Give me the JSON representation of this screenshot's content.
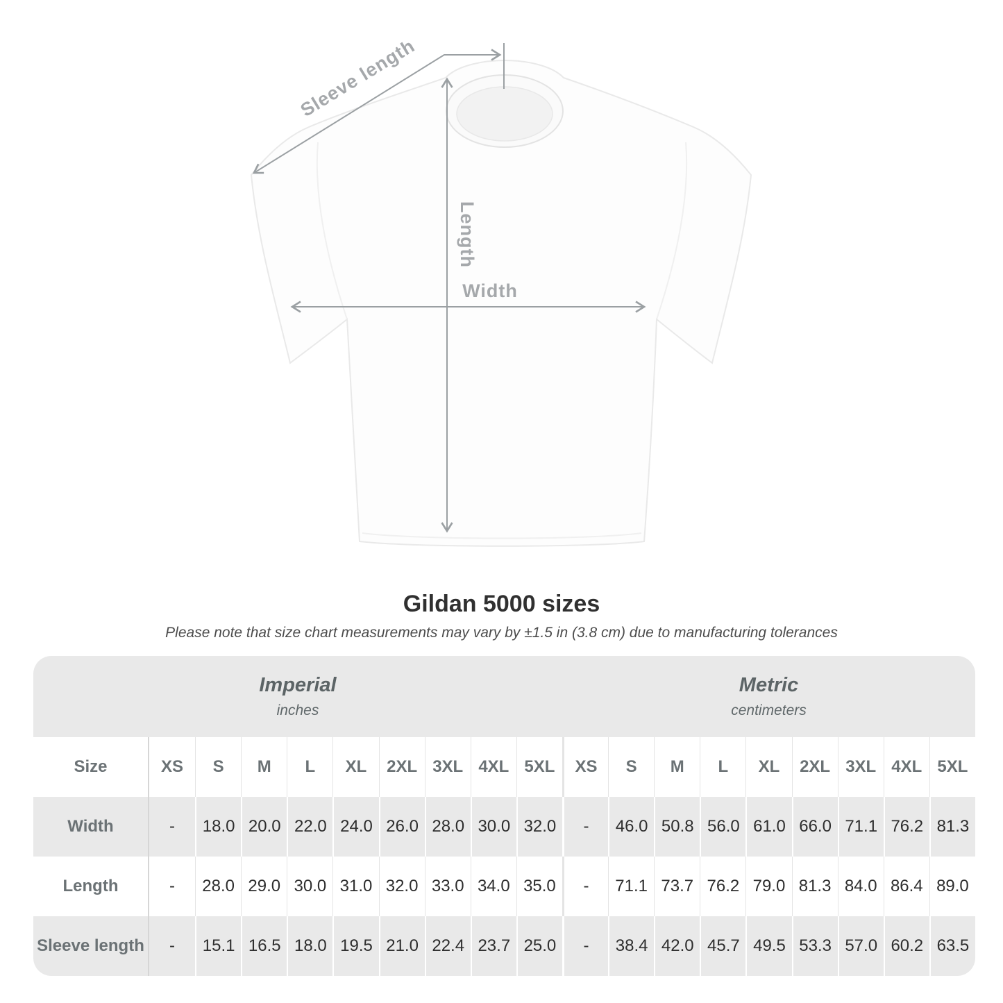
{
  "diagram": {
    "labels": {
      "sleeve_length": "Sleeve length",
      "length": "Length",
      "width": "Width"
    },
    "line_color": "#9ba0a3",
    "label_color": "#a5a8ab"
  },
  "title": "Gildan 5000 sizes",
  "subtitle": "Please note that size chart measurements may vary by ±1.5 in (3.8 cm) due to manufacturing tolerances",
  "table": {
    "groups": [
      {
        "label": "Imperial",
        "unit": "inches"
      },
      {
        "label": "Metric",
        "unit": "centimeters"
      }
    ],
    "size_label": "Size",
    "sizes": [
      "XS",
      "S",
      "M",
      "L",
      "XL",
      "2XL",
      "3XL",
      "4XL",
      "5XL"
    ],
    "rows": [
      {
        "label": "Width",
        "imperial": [
          "-",
          "18.0",
          "20.0",
          "22.0",
          "24.0",
          "26.0",
          "28.0",
          "30.0",
          "32.0"
        ],
        "metric": [
          "-",
          "46.0",
          "50.8",
          "56.0",
          "61.0",
          "66.0",
          "71.1",
          "76.2",
          "81.3"
        ]
      },
      {
        "label": "Length",
        "imperial": [
          "-",
          "28.0",
          "29.0",
          "30.0",
          "31.0",
          "32.0",
          "33.0",
          "34.0",
          "35.0"
        ],
        "metric": [
          "-",
          "71.1",
          "73.7",
          "76.2",
          "79.0",
          "81.3",
          "84.0",
          "86.4",
          "89.0"
        ]
      },
      {
        "label": "Sleeve length",
        "imperial": [
          "-",
          "15.1",
          "16.5",
          "18.0",
          "19.5",
          "21.0",
          "22.4",
          "23.7",
          "25.0"
        ],
        "metric": [
          "-",
          "38.4",
          "42.0",
          "45.7",
          "49.5",
          "53.3",
          "57.0",
          "60.2",
          "63.5"
        ]
      }
    ]
  },
  "colors": {
    "band_bg": "#e9e9e9",
    "alt_row_bg": "#e9e9e9",
    "label_text": "#6b7275",
    "value_text": "#2e2e2e",
    "title_text": "#303030"
  }
}
